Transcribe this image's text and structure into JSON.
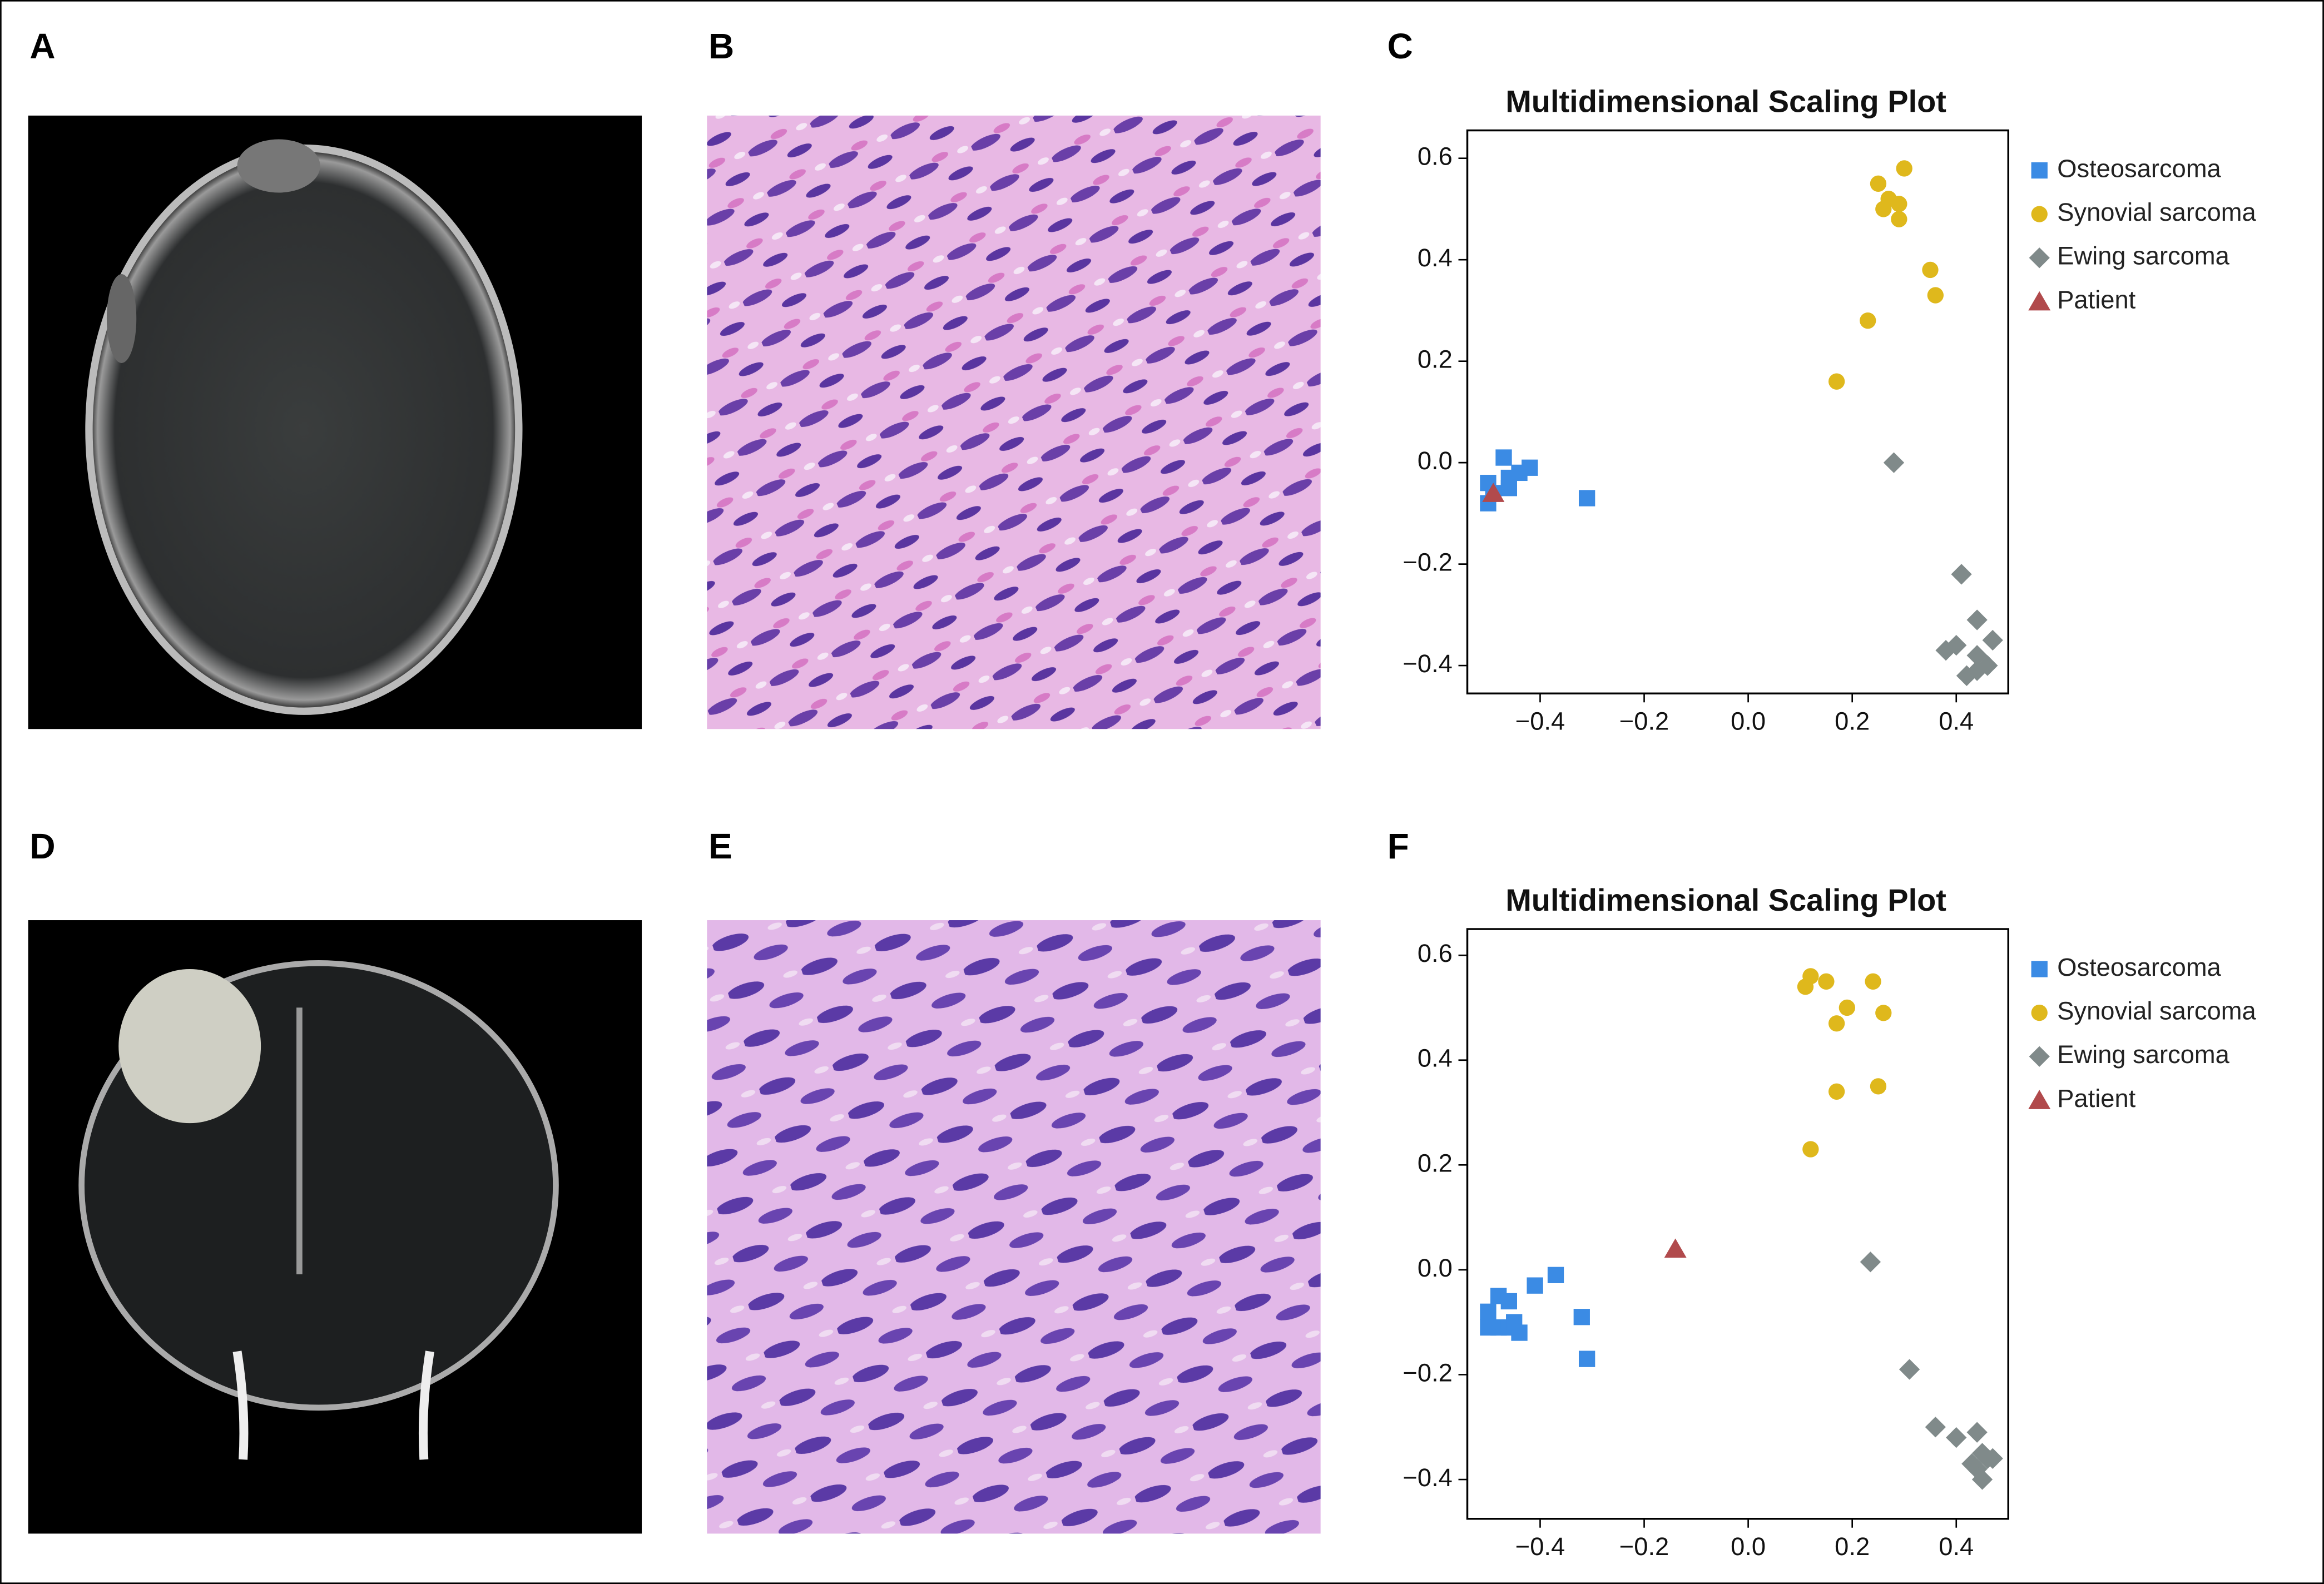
{
  "panels": [
    "A",
    "B",
    "C",
    "D",
    "E",
    "F"
  ],
  "chart_data": [
    {
      "type": "scatter",
      "title": "Multidimensional Scaling Plot",
      "xlim": [
        -0.54,
        0.5
      ],
      "ylim": [
        -0.455,
        0.655
      ],
      "xticks": [
        {
          "value": -0.4,
          "label": "−0.4"
        },
        {
          "value": -0.2,
          "label": "−0.2"
        },
        {
          "value": 0,
          "label": "0.0"
        },
        0.2,
        0.4
      ],
      "yticks": [
        0.6,
        0.4,
        0.2,
        {
          "value": 0,
          "label": "0.0"
        },
        {
          "value": -0.2,
          "label": "−0.2"
        },
        {
          "value": -0.4,
          "label": "−0.4"
        }
      ],
      "legend": "outside-right",
      "series": [
        {
          "name": "Osteosarcoma",
          "color": "#3b8be4",
          "marker": "square",
          "x": [
            -0.47,
            -0.5,
            -0.5,
            -0.46,
            -0.44,
            -0.42,
            -0.49,
            -0.31,
            -0.46
          ],
          "values": [
            0.01,
            -0.04,
            -0.08,
            -0.05,
            -0.02,
            -0.01,
            -0.06,
            -0.07,
            -0.03
          ]
        },
        {
          "name": "Synovial sarcoma",
          "color": "#dfb81c",
          "marker": "circle",
          "x": [
            0.25,
            0.3,
            0.27,
            0.26,
            0.29,
            0.29,
            0.35,
            0.36,
            0.23,
            0.17
          ],
          "values": [
            0.55,
            0.58,
            0.52,
            0.5,
            0.51,
            0.48,
            0.38,
            0.33,
            0.28,
            0.16
          ]
        },
        {
          "name": "Ewing sarcoma",
          "color": "#808a8a",
          "marker": "diamond",
          "x": [
            0.28,
            0.41,
            0.44,
            0.47,
            0.4,
            0.38,
            0.44,
            0.44,
            0.46,
            0.42
          ],
          "values": [
            0.0,
            -0.22,
            -0.31,
            -0.35,
            -0.36,
            -0.37,
            -0.38,
            -0.41,
            -0.4,
            -0.42
          ]
        },
        {
          "name": "Patient",
          "color": "#b14a4c",
          "marker": "triangle",
          "x": [
            -0.49
          ],
          "values": [
            -0.06
          ]
        }
      ]
    },
    {
      "type": "scatter",
      "title": "Multidimensional Scaling Plot",
      "xlim": [
        -0.54,
        0.5
      ],
      "ylim": [
        -0.475,
        0.65
      ],
      "xticks": [
        {
          "value": -0.4,
          "label": "−0.4"
        },
        {
          "value": -0.2,
          "label": "−0.2"
        },
        {
          "value": 0,
          "label": "0.0"
        },
        0.2,
        0.4
      ],
      "yticks": [
        0.6,
        0.4,
        0.2,
        {
          "value": 0,
          "label": "0.0"
        },
        {
          "value": -0.2,
          "label": "−0.2"
        },
        {
          "value": -0.4,
          "label": "−0.4"
        }
      ],
      "legend": "outside-right",
      "series": [
        {
          "name": "Osteosarcoma",
          "color": "#3b8be4",
          "marker": "square",
          "x": [
            -0.5,
            -0.48,
            -0.46,
            -0.5,
            -0.48,
            -0.46,
            -0.44,
            -0.45,
            -0.41,
            -0.37,
            -0.32,
            -0.31
          ],
          "values": [
            -0.08,
            -0.05,
            -0.06,
            -0.11,
            -0.11,
            -0.11,
            -0.12,
            -0.1,
            -0.03,
            -0.01,
            -0.09,
            -0.17
          ]
        },
        {
          "name": "Synovial sarcoma",
          "color": "#dfb81c",
          "marker": "circle",
          "x": [
            0.12,
            0.11,
            0.15,
            0.24,
            0.19,
            0.26,
            0.17,
            0.17,
            0.25,
            0.12
          ],
          "values": [
            0.56,
            0.54,
            0.55,
            0.55,
            0.5,
            0.49,
            0.47,
            0.34,
            0.35,
            0.23
          ]
        },
        {
          "name": "Ewing sarcoma",
          "color": "#808a8a",
          "marker": "diamond",
          "x": [
            0.235,
            0.31,
            0.36,
            0.4,
            0.44,
            0.45,
            0.46,
            0.44,
            0.45,
            0.43,
            0.47
          ],
          "values": [
            0.015,
            -0.19,
            -0.3,
            -0.32,
            -0.31,
            -0.35,
            -0.36,
            -0.38,
            -0.4,
            -0.37,
            -0.36
          ]
        },
        {
          "name": "Patient",
          "color": "#b14a4c",
          "marker": "triangle",
          "x": [
            -0.14
          ],
          "values": [
            0.04
          ]
        }
      ]
    }
  ]
}
